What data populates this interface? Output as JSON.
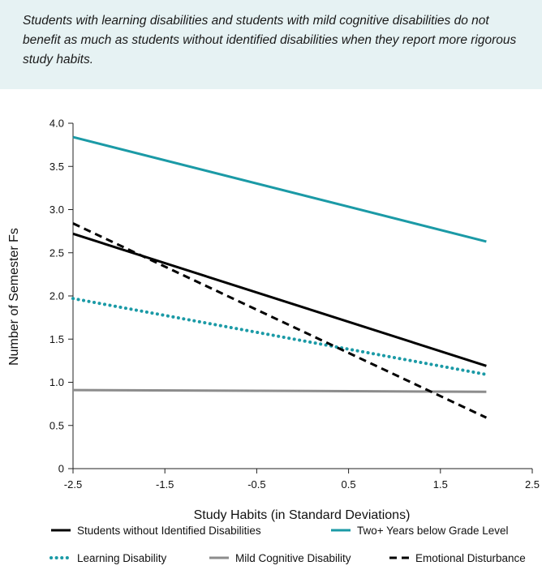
{
  "callout": {
    "text": "Students with learning disabilities and students with mild cognitive disabilities do not benefit as much as students without identified disabilities when they report more rigorous study habits."
  },
  "chart_data": {
    "type": "line",
    "xlabel": "Study Habits (in Standard Deviations)",
    "ylabel": "Number of Semester Fs",
    "xlim": [
      -2.5,
      2.5
    ],
    "ylim": [
      0,
      4.0
    ],
    "x_ticks": [
      "-2.5",
      "-1.5",
      "-0.5",
      "0.5",
      "1.5",
      "2.5"
    ],
    "y_ticks": [
      "0",
      "0.5",
      "1.0",
      "1.5",
      "2.0",
      "2.5",
      "3.0",
      "3.5",
      "4.0"
    ],
    "grid": false,
    "legend_position": "bottom",
    "series": [
      {
        "name": "Students without Identified Disabilities",
        "x": [
          -2.5,
          2.0
        ],
        "values": [
          2.72,
          1.19
        ],
        "color": "#000000",
        "style": "solid"
      },
      {
        "name": "Two+ Years below Grade Level",
        "x": [
          -2.5,
          2.0
        ],
        "values": [
          3.84,
          2.63
        ],
        "color": "#1b9aa6",
        "style": "solid"
      },
      {
        "name": "Learning Disability",
        "x": [
          -2.5,
          2.0
        ],
        "values": [
          1.97,
          1.09
        ],
        "color": "#1b9aa6",
        "style": "dotted"
      },
      {
        "name": "Mild Cognitive Disability",
        "x": [
          -2.5,
          2.0
        ],
        "values": [
          0.91,
          0.89
        ],
        "color": "#8c8c8c",
        "style": "solid"
      },
      {
        "name": "Emotional Disturbance",
        "x": [
          -2.5,
          2.0
        ],
        "values": [
          2.84,
          0.59
        ],
        "color": "#000000",
        "style": "dashed"
      }
    ]
  }
}
